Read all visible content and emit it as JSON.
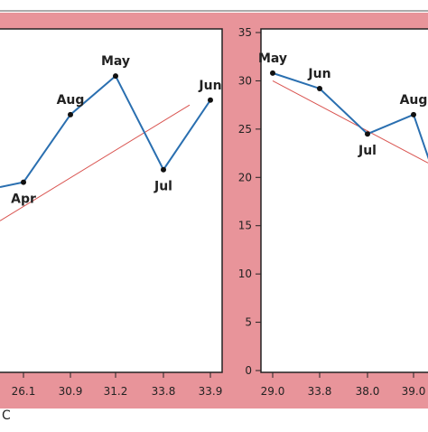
{
  "chart_data": [
    {
      "type": "line",
      "xlabel": "C",
      "x": [
        "26.1",
        "30.9",
        "31.2",
        "33.8",
        "33.9"
      ],
      "series": [
        {
          "points": [
            {
              "x": "26.1",
              "y": 19.5,
              "label": "Apr"
            },
            {
              "x": "30.9",
              "y": 26.5,
              "label": "Aug"
            },
            {
              "x": "31.2",
              "y": 30.5,
              "label": "May"
            },
            {
              "x": "33.8",
              "y": 20.8,
              "label": "Jul"
            },
            {
              "x": "33.9",
              "y": 28.0,
              "label": "Jun"
            }
          ],
          "color": "#2a6fb0"
        }
      ],
      "trend": {
        "x_from": 25.0,
        "x_to": 34.0,
        "y_from": 15.5,
        "y_to": 27.5,
        "color": "#d9534f"
      }
    },
    {
      "type": "line",
      "yticks": [
        "0",
        "5",
        "10",
        "15",
        "20",
        "25",
        "30",
        "35"
      ],
      "x": [
        "29.0",
        "33.8",
        "38.0",
        "39.0"
      ],
      "ylim": [
        0,
        35
      ],
      "series": [
        {
          "points": [
            {
              "x": "29.0",
              "y": 30.8,
              "label": "May"
            },
            {
              "x": "33.8",
              "y": 29.2,
              "label": "Jun"
            },
            {
              "x": "38.0",
              "y": 24.5,
              "label": "Jul"
            },
            {
              "x": "39.0",
              "y": 26.5,
              "label": "Aug"
            }
          ],
          "color": "#2a6fb0"
        }
      ],
      "trend": {
        "y_from": 30.0,
        "y_to": 21.5,
        "color": "#d9534f"
      }
    }
  ]
}
